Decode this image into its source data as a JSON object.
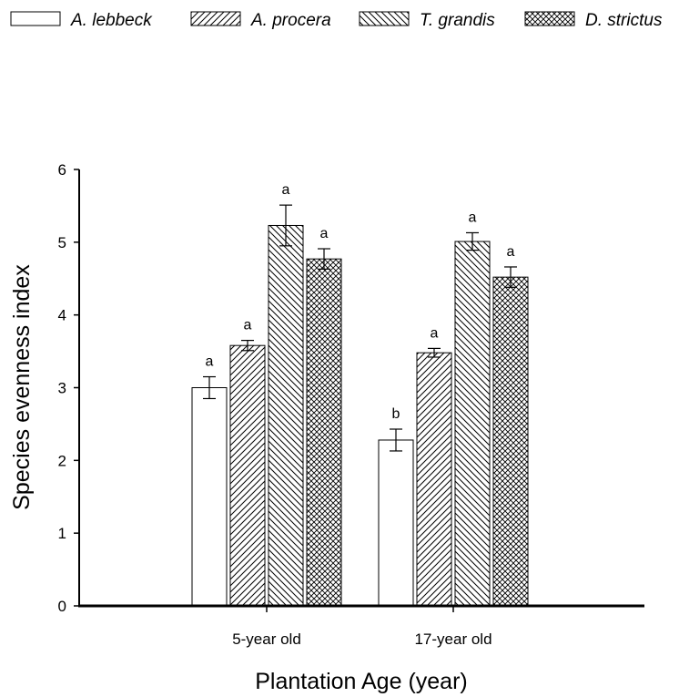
{
  "chart_data": {
    "type": "bar",
    "title": "",
    "xlabel": "Plantation Age (year)",
    "ylabel": "Species evenness index",
    "ylim": [
      0,
      6
    ],
    "yticks": [
      0,
      1,
      2,
      3,
      4,
      5,
      6
    ],
    "categories": [
      "5-year old",
      "17-year old"
    ],
    "legend_position": "top",
    "series": [
      {
        "name": "A. lebbeck",
        "pattern": "none",
        "values": [
          3.0,
          2.28
        ],
        "errors": [
          0.15,
          0.15
        ],
        "letters": [
          "a",
          "b"
        ]
      },
      {
        "name": "A. procera",
        "pattern": "hatch-forward",
        "values": [
          3.58,
          3.48
        ],
        "errors": [
          0.07,
          0.06
        ],
        "letters": [
          "a",
          "a"
        ]
      },
      {
        "name": "T. grandis",
        "pattern": "hatch-backward",
        "values": [
          5.23,
          5.01
        ],
        "errors": [
          0.28,
          0.12
        ],
        "letters": [
          "a",
          "a"
        ]
      },
      {
        "name": "D. strictus",
        "pattern": "crosshatch",
        "values": [
          4.77,
          4.52
        ],
        "errors": [
          0.14,
          0.14
        ],
        "letters": [
          "a",
          "a"
        ]
      }
    ]
  }
}
